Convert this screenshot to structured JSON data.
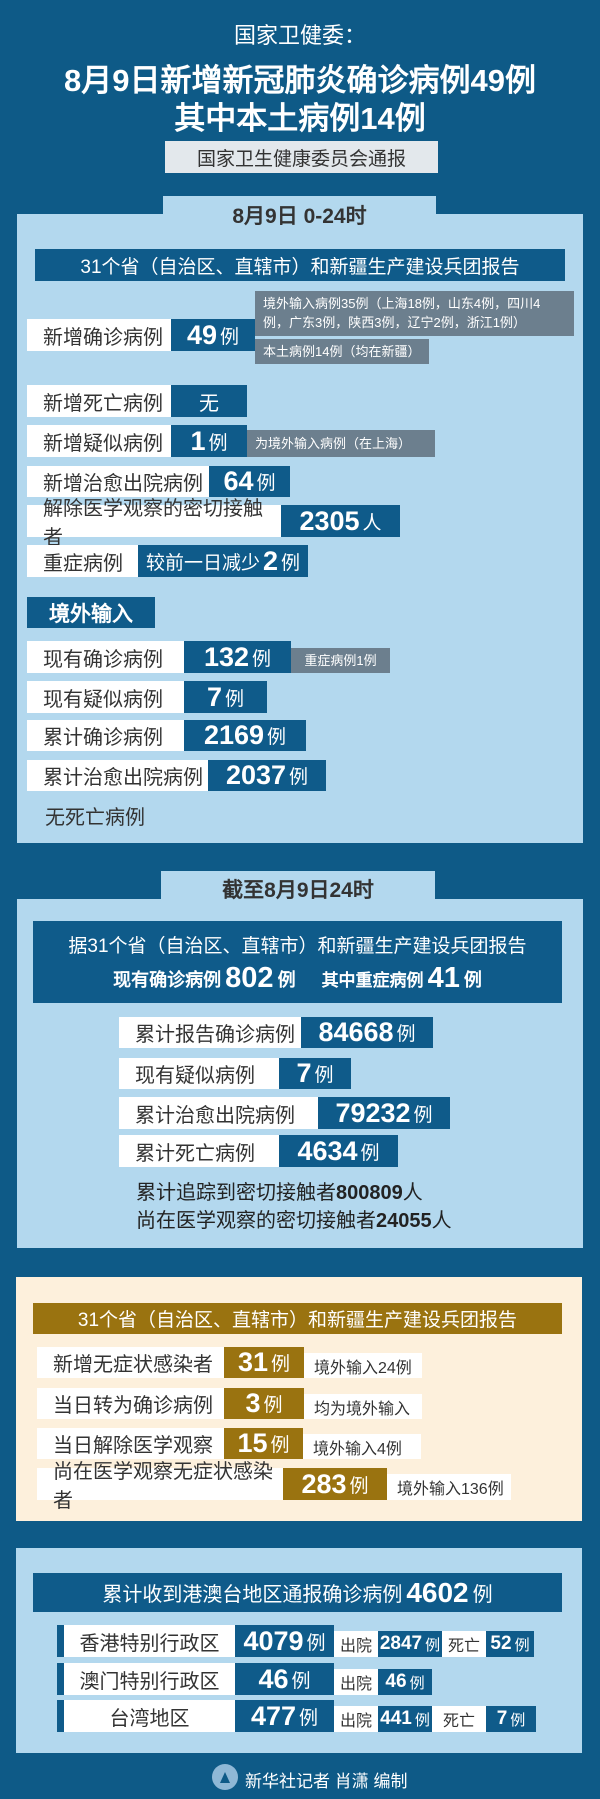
{
  "header": {
    "pre": "国家卫健委：",
    "line1": "8月9日新增新冠肺炎确诊病例49例",
    "line2": "其中本土病例14例",
    "source": "国家卫生健康委员会通报"
  },
  "daily": {
    "tab": "8月9日 0-24时",
    "banner": "31个省（自治区、直辖市）和新疆生产建设兵团报告",
    "rows": [
      {
        "label": "新增确诊病例",
        "value": "49",
        "unit": "例",
        "notes": [
          "境外输入病例35例（上海18例，山东4例，四川4例，广东3例，陕西3例，辽宁2例，浙江1例）",
          "本土病例14例（均在新疆）"
        ]
      },
      {
        "label": "新增死亡病例",
        "value": "无"
      },
      {
        "label": "新增疑似病例",
        "value": "1",
        "unit": "例",
        "note": "为境外输入病例（在上海）"
      },
      {
        "label": "新增治愈出院病例",
        "value": "64",
        "unit": "例"
      },
      {
        "label": "解除医学观察的密切接触者",
        "value": "2305",
        "unit": "人"
      },
      {
        "label": "重症病例",
        "prefix": "较前一日减少",
        "value": "2",
        "unit": "例"
      }
    ],
    "imported": {
      "title": "境外输入",
      "rows": [
        {
          "label": "现有确诊病例",
          "value": "132",
          "unit": "例",
          "note": "重症病例1例"
        },
        {
          "label": "现有疑似病例",
          "value": "7",
          "unit": "例"
        },
        {
          "label": "累计确诊病例",
          "value": "2169",
          "unit": "例"
        },
        {
          "label": "累计治愈出院病例",
          "value": "2037",
          "unit": "例"
        }
      ],
      "footer": "无死亡病例"
    }
  },
  "cumulative": {
    "tab": "截至8月9日24时",
    "banner": "据31个省（自治区、直辖市）和新疆生产建设兵团报告",
    "current_label": "现有确诊病例",
    "current_value": "802",
    "severe_label": "其中重症病例",
    "severe_value": "41",
    "unit": "例",
    "rows": [
      {
        "label": "累计报告确诊病例",
        "value": "84668",
        "unit": "例"
      },
      {
        "label": "现有疑似病例",
        "value": "7",
        "unit": "例"
      },
      {
        "label": "累计治愈出院病例",
        "value": "79232",
        "unit": "例"
      },
      {
        "label": "累计死亡病例",
        "value": "4634",
        "unit": "例"
      }
    ],
    "lines": [
      {
        "text": "累计追踪到密切接触者",
        "value": "800809",
        "unit": "人"
      },
      {
        "text": "尚在医学观察的密切接触者",
        "value": "24055",
        "unit": "人"
      }
    ]
  },
  "asymptomatic": {
    "banner": "31个省（自治区、直辖市）和新疆生产建设兵团报告",
    "rows": [
      {
        "label": "新增无症状感染者",
        "value": "31",
        "unit": "例",
        "note": "境外输入24例"
      },
      {
        "label": "当日转为确诊病例",
        "value": "3",
        "unit": "例",
        "note": "均为境外输入"
      },
      {
        "label": "当日解除医学观察",
        "value": "15",
        "unit": "例",
        "note": "境外输入4例"
      },
      {
        "label": "尚在医学观察无症状感染者",
        "value": "283",
        "unit": "例",
        "note": "境外输入136例"
      }
    ]
  },
  "hmt": {
    "banner": "累计收到港澳台地区通报确诊病例",
    "total": "4602",
    "unit": "例",
    "discharged_label": "出院",
    "death_label": "死亡",
    "rows": [
      {
        "label": "香港特别行政区",
        "value": "4079",
        "discharged": "2847",
        "deaths": "52"
      },
      {
        "label": "澳门特别行政区",
        "value": "46",
        "discharged": "46"
      },
      {
        "label": "台湾地区",
        "value": "477",
        "discharged": "441",
        "deaths": "7"
      }
    ]
  },
  "footer": {
    "credit": "新华社记者 肖潇 编制"
  },
  "colors": {
    "background": "#0e5a87",
    "panel": "#b3d8ee",
    "value_box": "#0f5b8a",
    "note": "#6c7f8e",
    "cream": "#fdf0dc",
    "gold": "#9a7310"
  }
}
